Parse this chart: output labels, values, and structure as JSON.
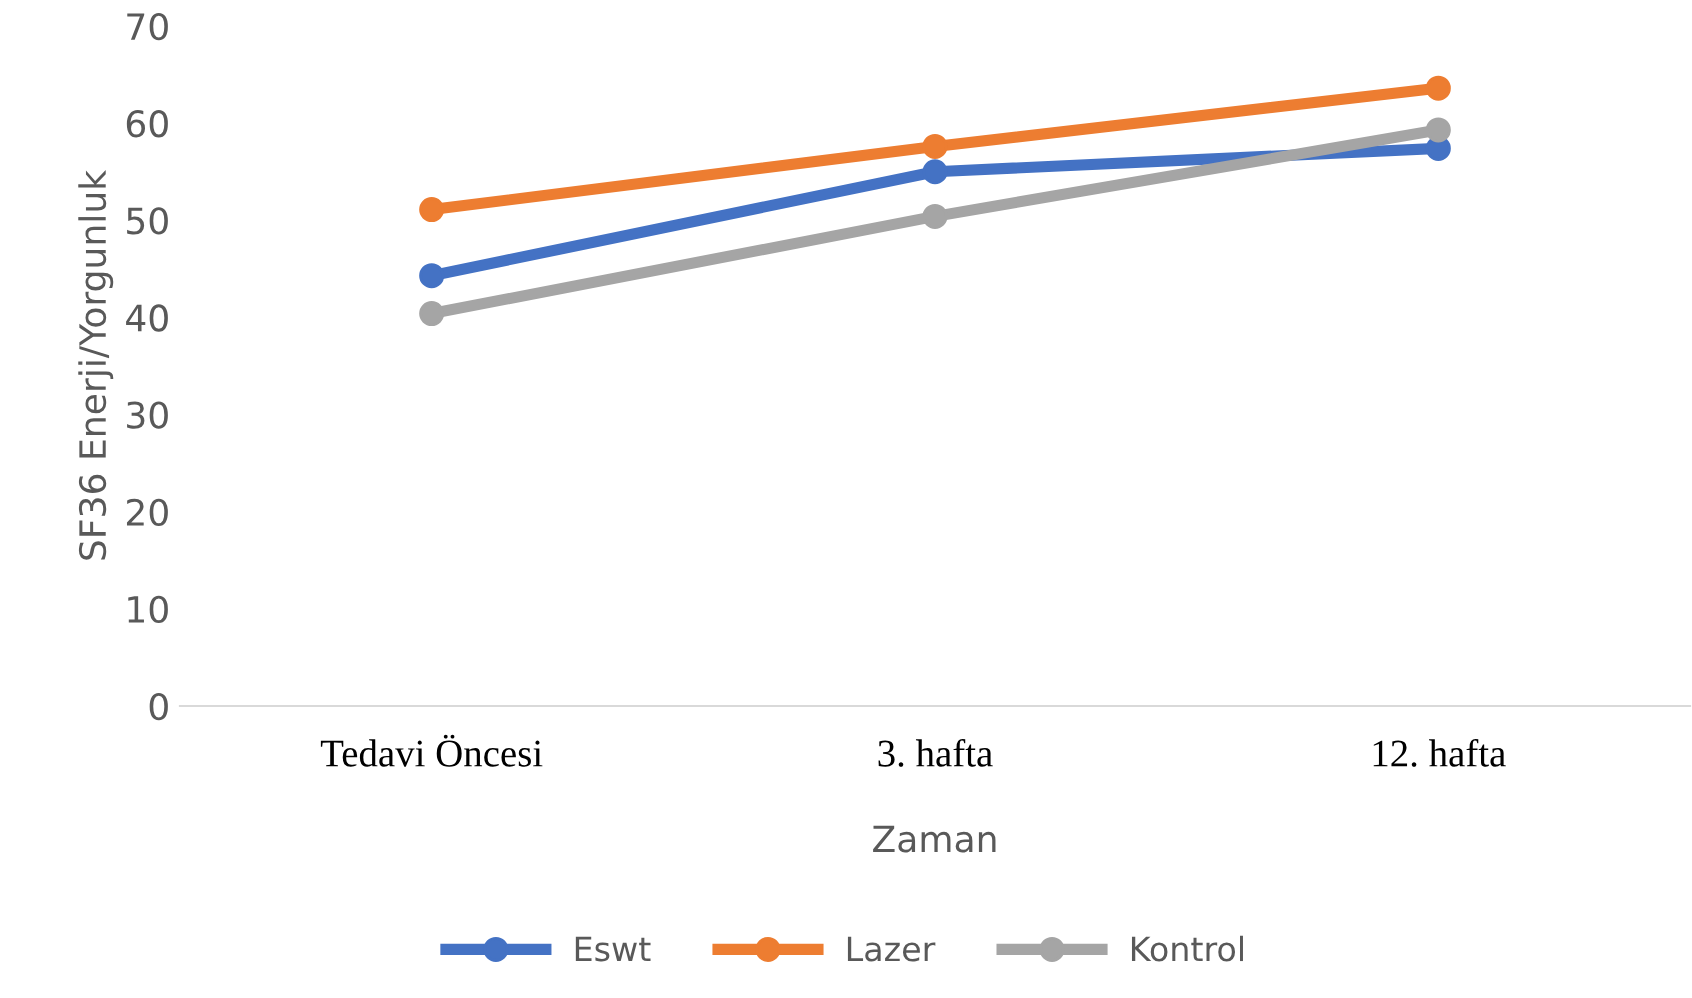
{
  "chart_data": {
    "type": "line",
    "xlabel": "Zaman",
    "ylabel": "SF36 Enerji/Yorgunluk",
    "categories": [
      "Tedavi Öncesi",
      "3. hafta",
      "12. hafta"
    ],
    "series": [
      {
        "name": "Eswt",
        "color": "#4472c4",
        "values": [
          44.3,
          55,
          57.4
        ]
      },
      {
        "name": "Lazer",
        "color": "#ed7d31",
        "values": [
          51.1,
          57.6,
          63.6
        ]
      },
      {
        "name": "Kontrol",
        "color": "#a5a5a5",
        "values": [
          40.4,
          50.4,
          59.3
        ]
      }
    ],
    "ylim": [
      0,
      70
    ],
    "yticks": [
      0,
      10,
      20,
      30,
      40,
      50,
      60,
      70
    ],
    "grid": false,
    "legend": "bottom",
    "marker": "circle",
    "line_style": "solid"
  }
}
